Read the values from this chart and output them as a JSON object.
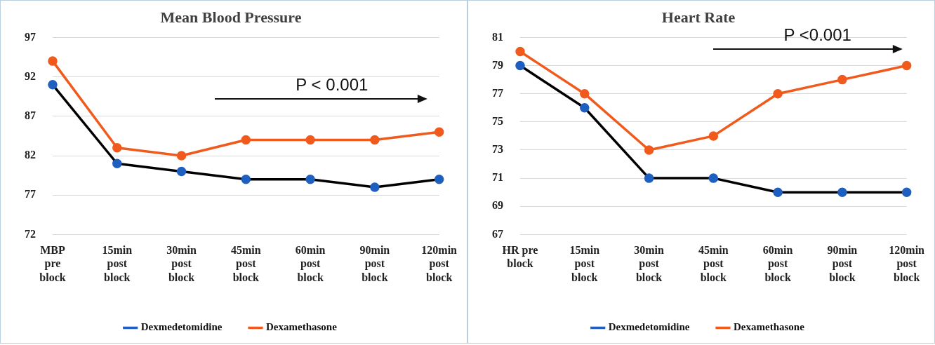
{
  "chart_data": [
    {
      "type": "line",
      "title": "Mean Blood Pressure",
      "categories": [
        "MBP pre block",
        "15min post block",
        "30min post block",
        "45min post block",
        "60min post block",
        "90min post block",
        "120min post block"
      ],
      "series": [
        {
          "name": "Dexmedetomidine",
          "color": "#000000",
          "colors": [
            "#1f5fbf",
            "#1f5fbf",
            "#1f5fbf",
            "#1f5fbf",
            "#1f5fbf",
            "#1f5fbf",
            "#1f5fbf"
          ],
          "values": [
            91,
            81,
            80,
            79,
            79,
            78,
            79
          ]
        },
        {
          "name": "Dexamethasone",
          "color": "#f05a1c",
          "values": [
            94,
            83,
            82,
            84,
            84,
            84,
            85
          ]
        }
      ],
      "ylim": [
        72,
        97
      ],
      "yticks": [
        72,
        77,
        82,
        87,
        92,
        97
      ],
      "grid": "y",
      "legend": "bottom",
      "marker": "circle",
      "annotations": [
        "P < 0.001"
      ]
    },
    {
      "type": "line",
      "title": "Heart Rate",
      "categories": [
        "HR pre block",
        "15min post block",
        "30min post block",
        "45min post block",
        "60min post block",
        "90min post block",
        "120min post block"
      ],
      "series": [
        {
          "name": "Dexmedetomidine",
          "color": "#000000",
          "colors": [
            "#1f5fbf",
            "#1f5fbf",
            "#1f5fbf",
            "#1f5fbf",
            "#1f5fbf",
            "#1f5fbf",
            "#1f5fbf"
          ],
          "values": [
            79,
            76,
            71,
            71,
            70,
            70,
            70
          ]
        },
        {
          "name": "Dexamethasone",
          "color": "#f05a1c",
          "values": [
            80,
            77,
            73,
            74,
            77,
            78,
            79
          ]
        }
      ],
      "ylim": [
        67,
        81
      ],
      "yticks": [
        67,
        69,
        71,
        73,
        75,
        77,
        79,
        81
      ],
      "grid": "y",
      "legend": "bottom",
      "marker": "circle",
      "annotations": [
        "P <0.001"
      ]
    }
  ]
}
